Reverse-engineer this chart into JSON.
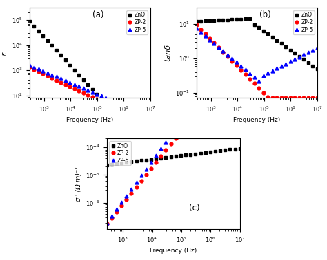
{
  "colors": {
    "ZnO": "black",
    "ZP2": "red",
    "ZP5": "blue"
  },
  "markers": {
    "ZnO": "s",
    "ZP2": "o",
    "ZP5": "^"
  },
  "marker_size": 3.5,
  "xlabel": "Frequency (Hz)",
  "background": "white",
  "n_points": 28,
  "freq_lo": 280.0,
  "freq_hi": 10000000.0,
  "panel_a": {
    "label": "(a)",
    "ylabel": "ε'",
    "ylim_lo": 80,
    "ylim_hi": 300000.0,
    "ZnO_A": 90000.0,
    "ZnO_p": -1.15,
    "ZP2_A": 1300,
    "ZP2_p": -0.5,
    "ZP5_A": 1600,
    "ZP5_p": -0.45
  },
  "panel_b": {
    "label": "(b)",
    "ylabel": "tanδ",
    "ylim_lo": 0.07,
    "ylim_hi": 30,
    "ZnO_flat": 12.0,
    "ZnO_break": 30000.0,
    "ZnO_p2": -0.55,
    "ZP2_A": 9.5,
    "ZP2_p": -0.78,
    "ZP5_A": 7.5,
    "ZP5_p1": -0.65,
    "ZP5_break": 80000.0,
    "ZP5_A2": 0.3,
    "ZP5_p2": 0.4
  },
  "panel_c": {
    "label": "(c)",
    "ylabel": "σ'' (Ω m)⁻¹",
    "ylim_lo": 1.2e-07,
    "ylim_hi": 0.0002,
    "ZnO_A": 2.3e-05,
    "ZnO_p": 0.13,
    "ZP2_A": 1.8e-07,
    "ZP2_p": 1.3,
    "ZP5_A": 2e-07,
    "ZP5_p": 1.42
  }
}
